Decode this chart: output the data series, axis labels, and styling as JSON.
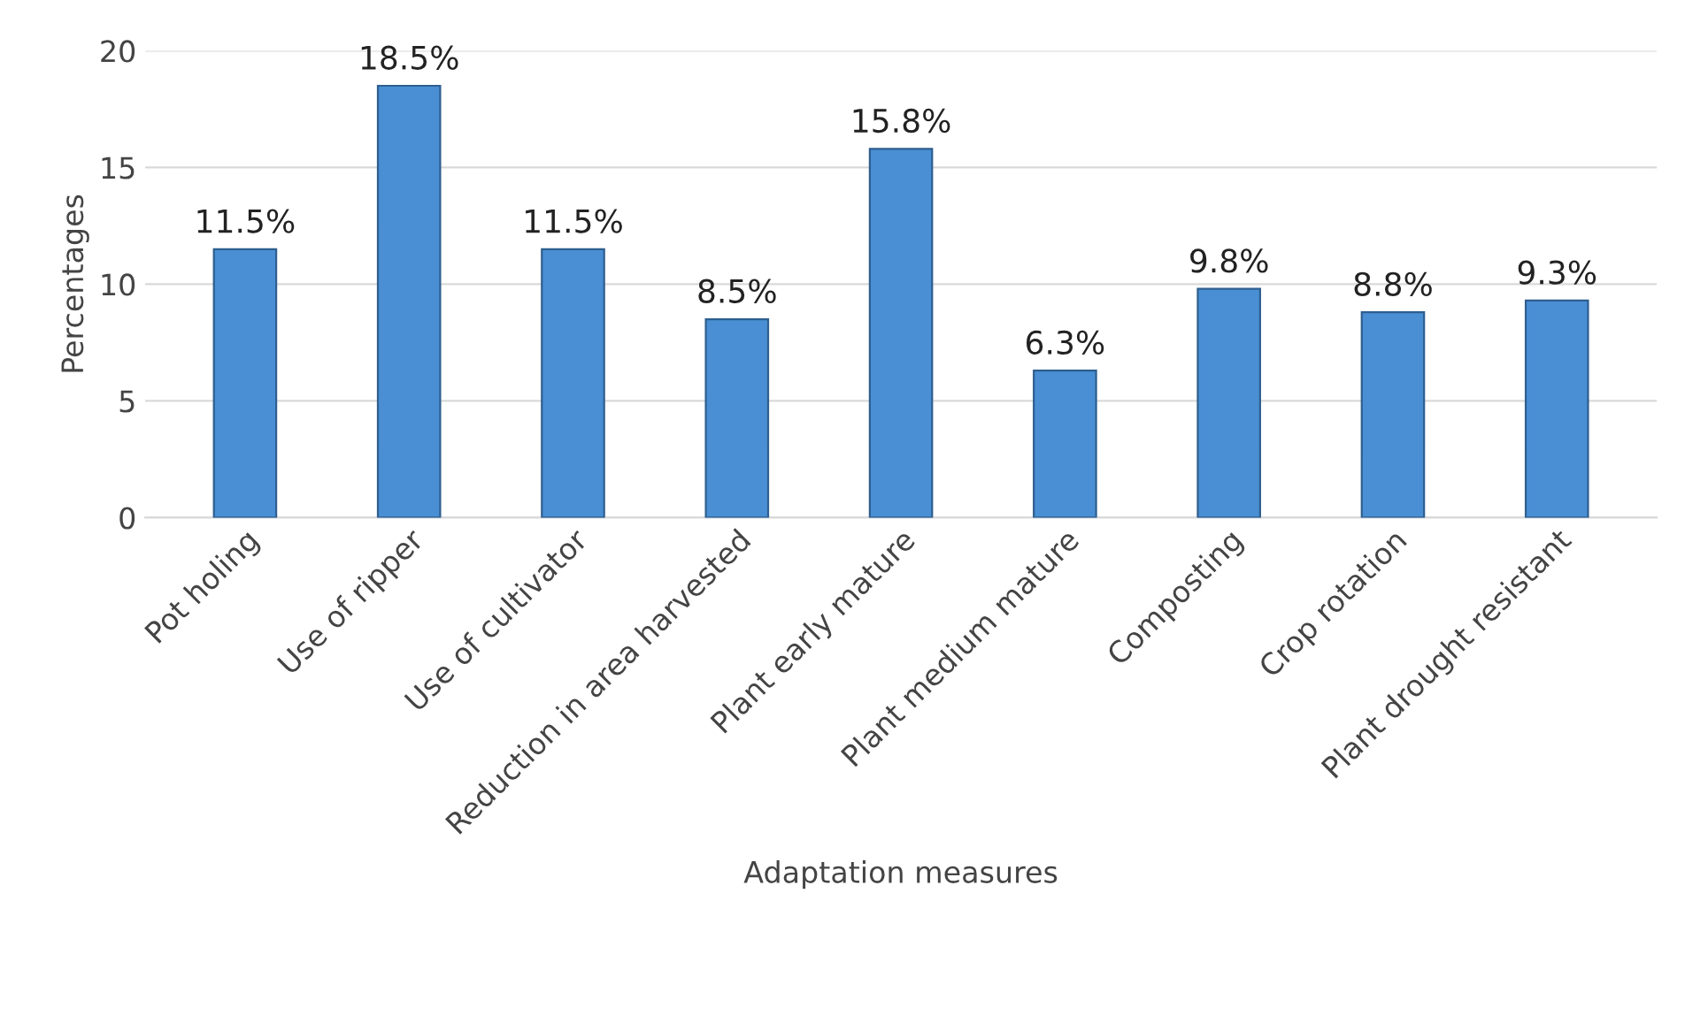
{
  "chart_data": {
    "type": "bar",
    "xlabel": "Adaptation measures",
    "ylabel": "Percentages",
    "categories": [
      "Pot holing",
      "Use of ripper",
      "Use of cultivator",
      "Reduction in area harvested",
      "Plant early mature",
      "Plant medium mature",
      "Composting",
      "Crop rotation",
      "Plant drought resistant"
    ],
    "values": [
      11.5,
      18.5,
      11.5,
      8.5,
      15.8,
      6.3,
      9.8,
      8.8,
      9.3
    ],
    "value_labels": [
      "11.5%",
      "18.5%",
      "11.5%",
      "8.5%",
      "15.8%",
      "6.3%",
      "9.8%",
      "8.8%",
      "9.3%"
    ],
    "color": "#4a8fd4",
    "ylim": [
      0,
      20
    ],
    "yticks": [
      0,
      5,
      10,
      15,
      20
    ],
    "grid": "y",
    "legend": false
  }
}
